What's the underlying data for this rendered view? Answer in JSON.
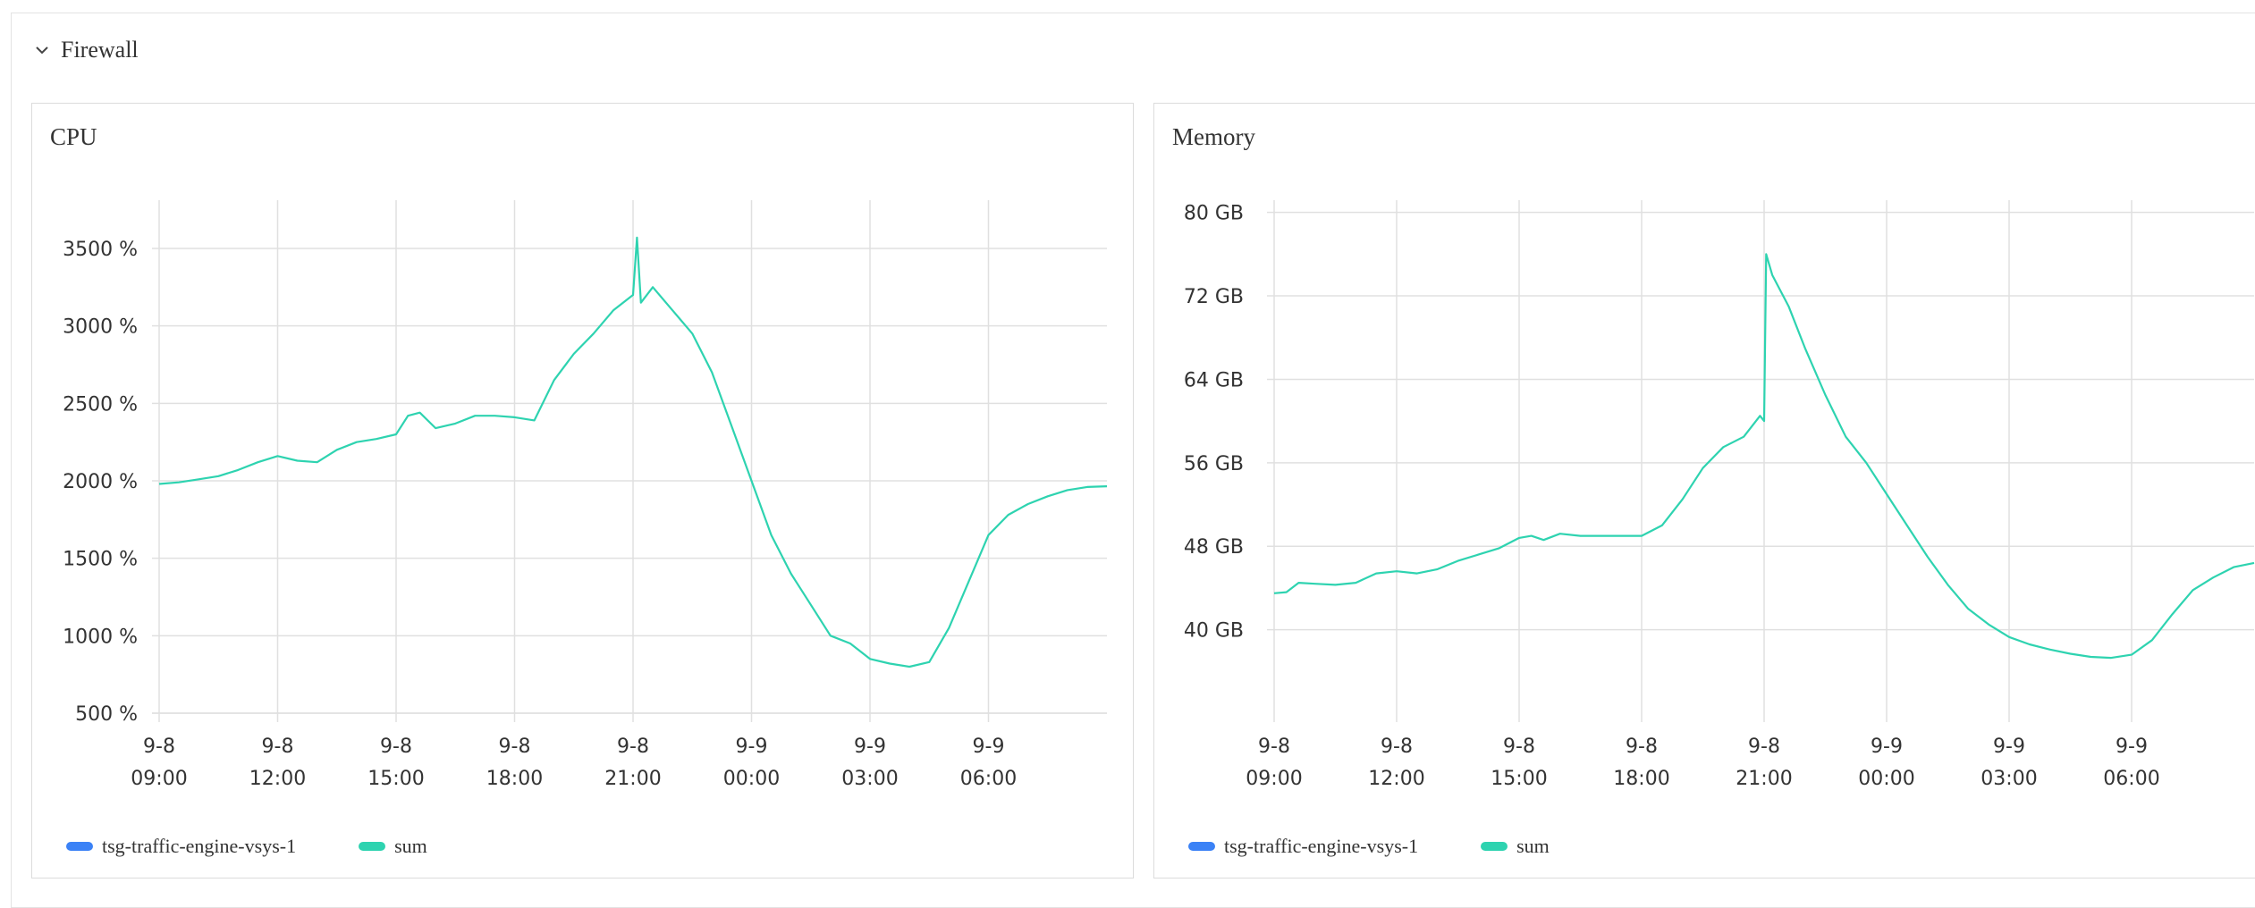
{
  "section": {
    "title": "Firewall"
  },
  "colors": {
    "series1": "#3b82f6",
    "series2": "#2ed3b0",
    "grid": "#e0e0e0"
  },
  "panels": [
    {
      "title": "CPU",
      "legend": [
        "tsg-traffic-engine-vsys-1",
        "sum"
      ]
    },
    {
      "title": "Memory",
      "legend": [
        "tsg-traffic-engine-vsys-1",
        "sum"
      ]
    }
  ],
  "chart_data": [
    {
      "type": "line",
      "title": "CPU",
      "x_ticks": [
        [
          "9-8",
          "09:00"
        ],
        [
          "9-8",
          "12:00"
        ],
        [
          "9-8",
          "15:00"
        ],
        [
          "9-8",
          "18:00"
        ],
        [
          "9-8",
          "21:00"
        ],
        [
          "9-9",
          "00:00"
        ],
        [
          "9-9",
          "03:00"
        ],
        [
          "9-9",
          "06:00"
        ]
      ],
      "y_ticks": [
        "3500 %",
        "3000 %",
        "2500 %",
        "2000 %",
        "1500 %",
        "1000 %",
        "500 %"
      ],
      "y_tick_values": [
        3500,
        3000,
        2500,
        2000,
        1500,
        1000,
        500
      ],
      "ylim": [
        500,
        3800
      ],
      "x_unit": "hours since 9-8 00:00",
      "xlim": [
        9,
        33
      ],
      "grid": true,
      "legend_position": "bottom-left",
      "series": [
        {
          "name": "tsg-traffic-engine-vsys-1",
          "x": [],
          "y": []
        },
        {
          "name": "sum",
          "x": [
            9,
            9.5,
            10,
            10.5,
            11,
            11.5,
            12,
            12.5,
            13,
            13.5,
            14,
            14.5,
            15,
            15.3,
            15.6,
            16,
            16.5,
            17,
            17.5,
            18,
            18.5,
            19,
            19.5,
            20,
            20.5,
            21,
            21.1,
            21.2,
            21.5,
            22,
            22.5,
            23,
            23.5,
            24,
            24.5,
            25,
            25.5,
            26,
            26.5,
            27,
            27.5,
            28,
            28.5,
            29,
            29.5,
            30,
            30.5,
            31,
            31.5,
            32,
            32.5,
            33
          ],
          "y": [
            1980,
            1990,
            2010,
            2030,
            2070,
            2120,
            2160,
            2130,
            2120,
            2200,
            2250,
            2270,
            2300,
            2420,
            2440,
            2340,
            2370,
            2420,
            2420,
            2410,
            2390,
            2650,
            2820,
            2950,
            3100,
            3200,
            3570,
            3150,
            3250,
            3100,
            2950,
            2700,
            2350,
            2000,
            1650,
            1400,
            1200,
            1000,
            950,
            850,
            820,
            800,
            830,
            1050,
            1350,
            1650,
            1780,
            1850,
            1900,
            1940,
            1960,
            1965
          ]
        }
      ]
    },
    {
      "type": "line",
      "title": "Memory",
      "x_ticks": [
        [
          "9-8",
          "09:00"
        ],
        [
          "9-8",
          "12:00"
        ],
        [
          "9-8",
          "15:00"
        ],
        [
          "9-8",
          "18:00"
        ],
        [
          "9-8",
          "21:00"
        ],
        [
          "9-9",
          "00:00"
        ],
        [
          "9-9",
          "03:00"
        ],
        [
          "9-9",
          "06:00"
        ]
      ],
      "y_ticks": [
        "80 GB",
        "72 GB",
        "64 GB",
        "56 GB",
        "48 GB",
        "40 GB"
      ],
      "y_tick_values": [
        80,
        72,
        64,
        56,
        48,
        40
      ],
      "ylim": [
        32,
        81
      ],
      "x_unit": "hours since 9-8 00:00",
      "xlim": [
        9,
        33
      ],
      "grid": true,
      "legend_position": "bottom-left",
      "series": [
        {
          "name": "tsg-traffic-engine-vsys-1",
          "x": [],
          "y": []
        },
        {
          "name": "sum",
          "x": [
            9,
            9.3,
            9.6,
            10,
            10.5,
            11,
            11.5,
            12,
            12.5,
            13,
            13.5,
            14,
            14.5,
            15,
            15.3,
            15.6,
            16,
            16.5,
            17,
            17.5,
            18,
            18.5,
            19,
            19.5,
            20,
            20.5,
            20.9,
            21.0,
            21.05,
            21.2,
            21.6,
            22,
            22.5,
            23,
            23.5,
            24,
            24.5,
            25,
            25.5,
            26,
            26.5,
            27,
            27.5,
            28,
            28.5,
            29,
            29.5,
            30,
            30.5,
            31,
            31.5,
            32,
            32.5,
            33
          ],
          "y": [
            43.5,
            43.6,
            44.5,
            44.4,
            44.3,
            44.5,
            45.4,
            45.6,
            45.4,
            45.8,
            46.6,
            47.2,
            47.8,
            48.8,
            49.0,
            48.6,
            49.2,
            49.0,
            49.0,
            49.0,
            49.0,
            50.0,
            52.5,
            55.5,
            57.5,
            58.5,
            60.5,
            60.0,
            76.0,
            74.0,
            71.0,
            67.0,
            62.5,
            58.5,
            56.0,
            53.0,
            50.0,
            47.0,
            44.3,
            42.0,
            40.5,
            39.3,
            38.6,
            38.1,
            37.7,
            37.4,
            37.3,
            37.6,
            39.0,
            41.5,
            43.8,
            45.0,
            46.0,
            46.4
          ]
        }
      ]
    }
  ]
}
